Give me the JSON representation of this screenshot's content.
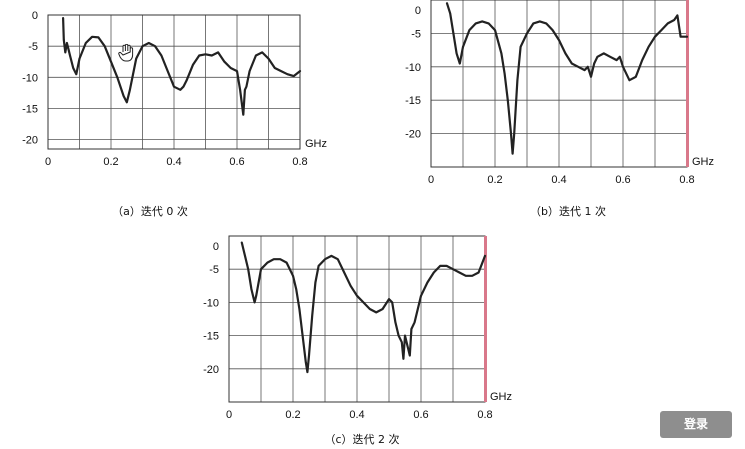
{
  "chart_data": [
    {
      "type": "line",
      "caption": "（a）迭代 0 次",
      "x_ticks": [
        "0",
        "0.2",
        "0.4",
        "0.6",
        "0.8"
      ],
      "y_ticks": [
        "0",
        "-5",
        "-10",
        "-15",
        "-20"
      ],
      "x_unit": "GHz",
      "xlim": [
        0,
        0.8
      ],
      "ylim": [
        -21.5,
        0
      ],
      "grid": true,
      "series": [
        {
          "x": [
            0.048,
            0.05,
            0.055,
            0.06,
            0.065,
            0.07,
            0.08,
            0.09,
            0.1,
            0.12,
            0.14,
            0.16,
            0.18,
            0.2,
            0.22,
            0.24,
            0.25,
            0.26,
            0.28,
            0.3,
            0.32,
            0.34,
            0.36,
            0.38,
            0.4,
            0.42,
            0.43,
            0.44,
            0.46,
            0.48,
            0.5,
            0.52,
            0.54,
            0.56,
            0.58,
            0.6,
            0.61,
            0.62,
            0.625,
            0.63,
            0.64,
            0.66,
            0.68,
            0.7,
            0.72,
            0.74,
            0.76,
            0.78,
            0.8
          ],
          "y": [
            -0.5,
            -4,
            -6,
            -4.5,
            -5.5,
            -6.5,
            -8.5,
            -9.5,
            -7,
            -4.5,
            -3.5,
            -3.6,
            -5,
            -7.5,
            -10,
            -13,
            -14,
            -12,
            -7,
            -5,
            -4.5,
            -5,
            -6.5,
            -9,
            -11.5,
            -12,
            -11.5,
            -10.5,
            -8,
            -6.5,
            -6.3,
            -6.5,
            -6,
            -7.5,
            -8.5,
            -9,
            -12,
            -16,
            -12,
            -11.5,
            -9,
            -6.5,
            -6,
            -7,
            -8.5,
            -9,
            -9.5,
            -9.8,
            -9
          ]
        }
      ]
    },
    {
      "type": "line",
      "caption": "（b）迭代 1 次",
      "x_ticks": [
        "0",
        "0.2",
        "0.4",
        "0.6",
        "0.8"
      ],
      "y_ticks": [
        "0",
        "-5",
        "-10",
        "-15",
        "-20"
      ],
      "x_unit": "GHz",
      "xlim": [
        0,
        0.8
      ],
      "ylim": [
        -25,
        0
      ],
      "grid": true,
      "series": [
        {
          "x": [
            0.05,
            0.06,
            0.07,
            0.08,
            0.09,
            0.1,
            0.12,
            0.14,
            0.16,
            0.18,
            0.2,
            0.22,
            0.23,
            0.24,
            0.25,
            0.255,
            0.26,
            0.27,
            0.28,
            0.3,
            0.32,
            0.34,
            0.36,
            0.38,
            0.4,
            0.42,
            0.44,
            0.46,
            0.48,
            0.49,
            0.5,
            0.51,
            0.52,
            0.54,
            0.56,
            0.58,
            0.59,
            0.6,
            0.62,
            0.64,
            0.66,
            0.68,
            0.7,
            0.72,
            0.74,
            0.76,
            0.77,
            0.78,
            0.8
          ],
          "y": [
            -0.5,
            -2,
            -5,
            -8,
            -9.5,
            -7,
            -4.5,
            -3.5,
            -3.2,
            -3.5,
            -4.5,
            -8,
            -11,
            -15,
            -20,
            -23,
            -20,
            -12,
            -7,
            -5,
            -3.5,
            -3.2,
            -3.5,
            -4.5,
            -6,
            -8,
            -9.5,
            -10,
            -10.5,
            -10,
            -11.5,
            -9.5,
            -8.5,
            -8,
            -8.5,
            -9,
            -8.5,
            -10,
            -12,
            -11.5,
            -9,
            -7,
            -5.5,
            -4.5,
            -3.5,
            -3,
            -2.3,
            -5.5,
            -5.5
          ]
        }
      ]
    },
    {
      "type": "line",
      "caption": "（c）迭代 2 次",
      "x_ticks": [
        "0",
        "0.2",
        "0.4",
        "0.6",
        "0.8"
      ],
      "y_ticks": [
        "0",
        "-5",
        "-10",
        "-15",
        "-20"
      ],
      "x_unit": "GHz",
      "xlim": [
        0,
        0.8
      ],
      "ylim": [
        -25,
        0
      ],
      "grid": true,
      "series": [
        {
          "x": [
            0.04,
            0.05,
            0.06,
            0.07,
            0.08,
            0.085,
            0.1,
            0.12,
            0.14,
            0.16,
            0.18,
            0.2,
            0.21,
            0.22,
            0.23,
            0.24,
            0.245,
            0.25,
            0.26,
            0.27,
            0.28,
            0.3,
            0.32,
            0.34,
            0.36,
            0.38,
            0.4,
            0.42,
            0.44,
            0.46,
            0.48,
            0.5,
            0.51,
            0.52,
            0.53,
            0.54,
            0.545,
            0.55,
            0.56,
            0.565,
            0.57,
            0.58,
            0.6,
            0.62,
            0.64,
            0.66,
            0.68,
            0.7,
            0.72,
            0.74,
            0.76,
            0.78,
            0.8
          ],
          "y": [
            -1,
            -3,
            -5,
            -8,
            -10,
            -9,
            -5,
            -4,
            -3.5,
            -3.5,
            -4,
            -6,
            -8,
            -11,
            -15,
            -19,
            -20.5,
            -18,
            -12,
            -7,
            -4.5,
            -3.5,
            -3,
            -3.5,
            -5.5,
            -7.5,
            -9,
            -10,
            -11,
            -11.5,
            -11,
            -9.5,
            -10,
            -13,
            -15,
            -16,
            -18.5,
            -15,
            -17,
            -18,
            -14,
            -13,
            -9,
            -7,
            -5.5,
            -4.5,
            -4.5,
            -5,
            -5.5,
            -6,
            -6,
            -5.5,
            -3
          ]
        }
      ]
    }
  ],
  "login_button": {
    "label": "登录"
  },
  "cursor": {
    "icon": "hand-pointer-icon"
  },
  "colors": {
    "line": "#222222",
    "grid": "#555555",
    "marker_bar": "#d9788a",
    "button_bg": "#8e8e8e"
  }
}
